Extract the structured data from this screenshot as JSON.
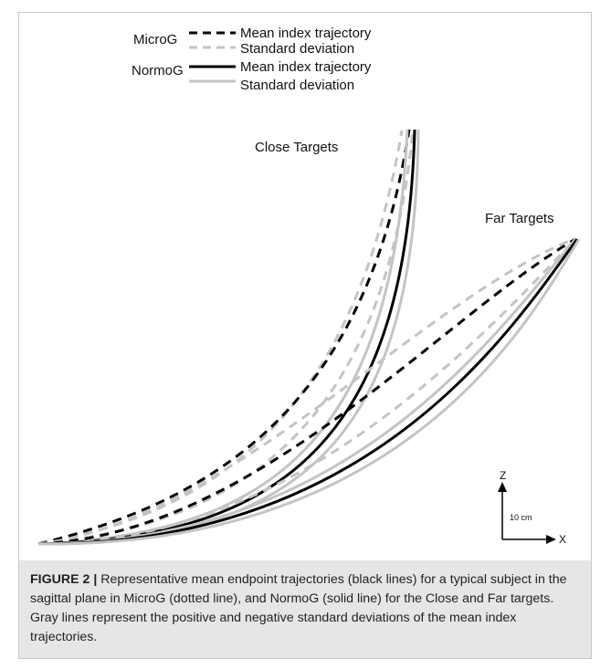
{
  "legend": {
    "groups": [
      {
        "name": "MicroG",
        "entries": [
          "Mean index trajectory",
          "Standard deviation"
        ]
      },
      {
        "name": "NormoG",
        "entries": [
          "Mean index trajectory",
          "Standard deviation"
        ]
      }
    ]
  },
  "annotations": {
    "close": "Close Targets",
    "far": "Far Targets"
  },
  "axes_indicator": {
    "z": "Z",
    "x": "X",
    "scale": "10 cm"
  },
  "caption": {
    "label": "FIGURE 2 |",
    "text": " Representative mean endpoint trajectories (black lines) for a typical subject in the sagittal plane in MicroG (dotted line), and NormoG (solid line) for the Close and Far targets. Gray lines represent the positive and negative standard deviations of the mean index trajectories."
  },
  "colors": {
    "mean": "#000000",
    "sd": "#c4c4c4",
    "caption_bg": "#e6e6e6",
    "border": "#c8c8c8"
  }
}
